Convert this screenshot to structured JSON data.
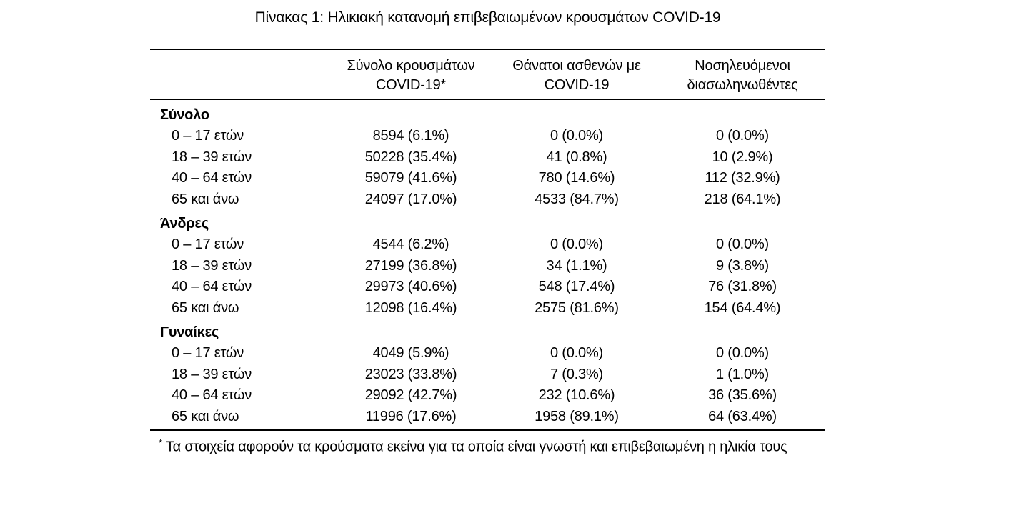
{
  "page": {
    "title": "Πίνακας 1: Ηλικιακή κατανομή επιβεβαιωμένων κρουσμάτων COVID-19"
  },
  "table": {
    "columns": [
      {
        "line1": "Σύνολο κρουσμάτων",
        "line2": "COVID-19*"
      },
      {
        "line1": "Θάνατοι ασθενών με",
        "line2": "COVID-19"
      },
      {
        "line1": "Νοσηλευόμενοι",
        "line2": "διασωληνωθέντες"
      }
    ],
    "sections": [
      {
        "label": "Σύνολο",
        "rows": [
          {
            "age": "0 – 17 ετών",
            "cases": "8594 (6.1%)",
            "deaths": "0 (0.0%)",
            "intubated": "0 (0.0%)"
          },
          {
            "age": "18 – 39 ετών",
            "cases": "50228 (35.4%)",
            "deaths": "41 (0.8%)",
            "intubated": "10 (2.9%)"
          },
          {
            "age": "40 – 64 ετών",
            "cases": "59079 (41.6%)",
            "deaths": "780 (14.6%)",
            "intubated": "112 (32.9%)"
          },
          {
            "age": "65 και άνω",
            "cases": "24097 (17.0%)",
            "deaths": "4533 (84.7%)",
            "intubated": "218 (64.1%)"
          }
        ]
      },
      {
        "label": "Άνδρες",
        "rows": [
          {
            "age": "0 – 17 ετών",
            "cases": "4544 (6.2%)",
            "deaths": "0 (0.0%)",
            "intubated": "0 (0.0%)"
          },
          {
            "age": "18 – 39 ετών",
            "cases": "27199 (36.8%)",
            "deaths": "34 (1.1%)",
            "intubated": "9 (3.8%)"
          },
          {
            "age": "40 – 64 ετών",
            "cases": "29973 (40.6%)",
            "deaths": "548 (17.4%)",
            "intubated": "76 (31.8%)"
          },
          {
            "age": "65 και άνω",
            "cases": "12098 (16.4%)",
            "deaths": "2575 (81.6%)",
            "intubated": "154 (64.4%)"
          }
        ]
      },
      {
        "label": "Γυναίκες",
        "rows": [
          {
            "age": "0 – 17 ετών",
            "cases": "4049 (5.9%)",
            "deaths": "0 (0.0%)",
            "intubated": "0 (0.0%)"
          },
          {
            "age": "18 – 39 ετών",
            "cases": "23023 (33.8%)",
            "deaths": "7 (0.3%)",
            "intubated": "1 (1.0%)"
          },
          {
            "age": "40 – 64 ετών",
            "cases": "29092 (42.7%)",
            "deaths": "232 (10.6%)",
            "intubated": "36 (35.6%)"
          },
          {
            "age": "65 και άνω",
            "cases": "11996 (17.6%)",
            "deaths": "1958 (89.1%)",
            "intubated": "64 (63.4%)"
          }
        ]
      }
    ]
  },
  "footnote": {
    "marker": "*",
    "text": "Τα στοιχεία αφορούν τα κρούσματα εκείνα για τα οποία είναι γνωστή και επιβεβαιωμένη η ηλικία τους"
  },
  "colors": {
    "text": "#000000",
    "rule": "#000000",
    "background": "#ffffff"
  }
}
